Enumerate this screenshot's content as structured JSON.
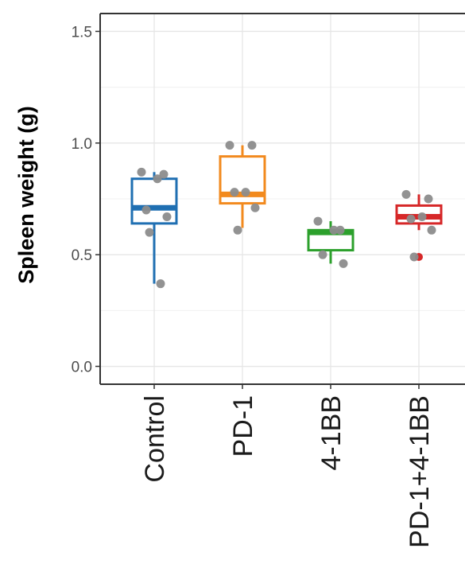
{
  "chart_data": {
    "type": "box",
    "title": "",
    "xlabel": "",
    "ylabel": "Spleen weight (g)",
    "ylim": [
      -0.08,
      1.58
    ],
    "yticks": [
      "0.0",
      "0.5",
      "1.0",
      "1.5"
    ],
    "grid": true,
    "legend": "none",
    "categories": [
      "Control",
      "PD-1",
      "4-1BB",
      "PD-1+4-1BB"
    ],
    "colors": [
      "#1f6fb2",
      "#f28a1e",
      "#2ca02c",
      "#d62728"
    ],
    "outlier_color": "#d62728",
    "point_color": "#8c8c8c",
    "boxes": [
      {
        "name": "Control",
        "q1": 0.64,
        "median": 0.71,
        "q3": 0.84,
        "whisker_low": 0.37,
        "whisker_high": 0.87,
        "points": [
          0.87,
          0.86,
          0.84,
          0.7,
          0.67,
          0.6,
          0.37
        ],
        "outliers": []
      },
      {
        "name": "PD-1",
        "q1": 0.73,
        "median": 0.77,
        "q3": 0.94,
        "whisker_low": 0.62,
        "whisker_high": 0.99,
        "points": [
          0.99,
          0.99,
          0.78,
          0.78,
          0.71,
          0.61
        ],
        "outliers": []
      },
      {
        "name": "4-1BB",
        "q1": 0.52,
        "median": 0.6,
        "q3": 0.61,
        "whisker_low": 0.46,
        "whisker_high": 0.65,
        "points": [
          0.65,
          0.61,
          0.61,
          0.5,
          0.46
        ],
        "outliers": []
      },
      {
        "name": "PD-1+4-1BB",
        "q1": 0.64,
        "median": 0.67,
        "q3": 0.72,
        "whisker_low": 0.61,
        "whisker_high": 0.77,
        "points": [
          0.77,
          0.75,
          0.67,
          0.66,
          0.61,
          0.49
        ],
        "outliers": [
          0.49
        ]
      }
    ]
  }
}
